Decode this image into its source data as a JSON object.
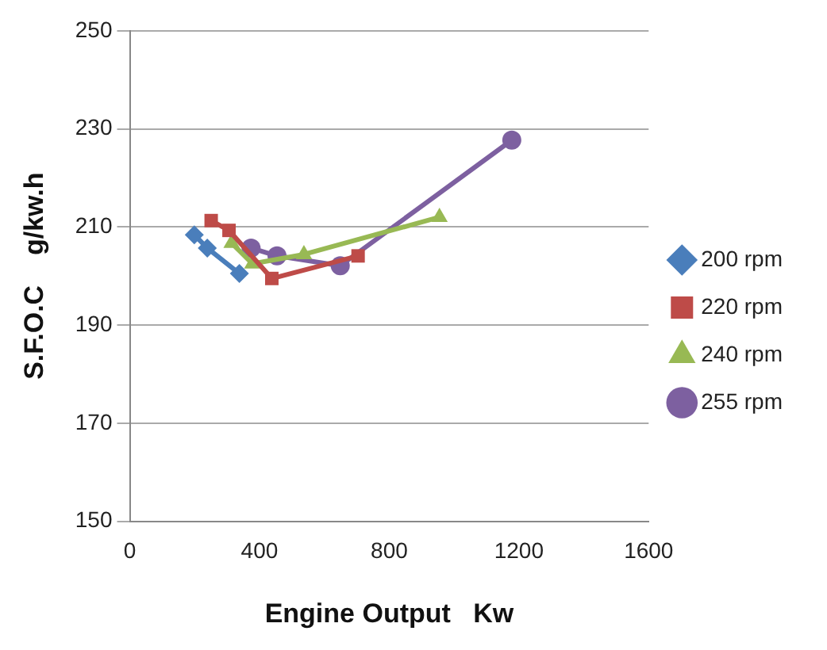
{
  "chart_data": {
    "type": "line",
    "xlabel": "Engine Output   Kw",
    "ylabel": "S.F.O.C    g/kw.h",
    "xlim": [
      0,
      1600
    ],
    "xticks": [
      0,
      400,
      800,
      1200,
      1600
    ],
    "ylim": [
      150,
      250
    ],
    "yticks": [
      150,
      170,
      190,
      210,
      230,
      250
    ],
    "grid": "y",
    "legend": "right",
    "series": [
      {
        "name": "200 rpm",
        "color": "#4a7ebb",
        "marker": "diamond",
        "x": [
          199,
          239,
          338
        ],
        "values": [
          208.4,
          205.7,
          200.5
        ]
      },
      {
        "name": "220 rpm",
        "color": "#be4b48",
        "marker": "square",
        "x": [
          251,
          306,
          438,
          704
        ],
        "values": [
          211.3,
          209.3,
          199.5,
          204.1
        ]
      },
      {
        "name": "240 rpm",
        "color": "#98b954",
        "marker": "triangle",
        "x": [
          314,
          378,
          537,
          955
        ],
        "values": [
          206.7,
          202.5,
          204.4,
          212
        ]
      },
      {
        "name": "255 rpm",
        "color": "#7d60a0",
        "marker": "circle",
        "x": [
          374,
          454,
          649,
          1178
        ],
        "values": [
          205.7,
          204.1,
          202.1,
          227.7
        ]
      }
    ]
  }
}
